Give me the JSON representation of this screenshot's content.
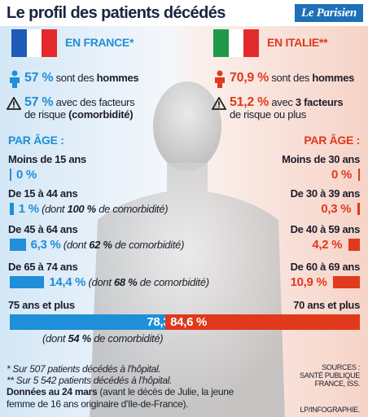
{
  "header": {
    "title": "Le profil des patients décédés",
    "brand": "Le Parisien"
  },
  "countries": [
    {
      "name": "EN FRANCE*",
      "color": "#1e8fd8",
      "men": {
        "share": "57 %",
        "text": "sont des",
        "bold": "hommes"
      },
      "risk": {
        "share": "57 %",
        "lines": [
          [
            {
              "text": "avec des facteurs",
              "bold": false
            }
          ],
          [
            {
              "text": "de risque",
              "bold": false
            },
            {
              "text": "(comorbidité)",
              "bold": true
            }
          ]
        ]
      },
      "age_title": "PAR ÂGE :",
      "ages": [
        {
          "group": "Moins de 15 ans",
          "share": {
            "value": 0,
            "label": "0 %"
          }
        },
        {
          "group": "De 15 à 44 ans",
          "share": {
            "value": 1,
            "label": "1 %"
          },
          "note": {
            "pre": "(dont",
            "share": "100 %",
            "post": "de comorbidité)"
          }
        },
        {
          "group": "De 45 à 64 ans",
          "share": {
            "value": 6.3,
            "label": "6,3 %"
          },
          "note": {
            "pre": "(dont",
            "share": "62 %",
            "post": "de comorbidité)"
          }
        },
        {
          "group": "De 65 à 74 ans",
          "share": {
            "value": 14.4,
            "label": "14,4 %"
          },
          "note": {
            "pre": "(dont",
            "share": "68 %",
            "post": "de comorbidité)"
          }
        },
        {
          "group": "75 ans et plus",
          "share": {
            "value": 78.3,
            "label": "78,3 %"
          },
          "note": {
            "pre": "(dont",
            "share": "54 %",
            "post": "de comorbidité)"
          }
        }
      ]
    },
    {
      "name": "EN ITALIE**",
      "color": "#e0391c",
      "men": {
        "share": "70,9 %",
        "text": "sont des",
        "bold": "hommes"
      },
      "risk": {
        "share": "51,2 %",
        "lines": [
          [
            {
              "text": "avec",
              "bold": false
            },
            {
              "text": "3 facteurs",
              "bold": true
            }
          ],
          [
            {
              "text": "de risque ou plus",
              "bold": false
            }
          ]
        ]
      },
      "age_title": "PAR ÂGE :",
      "ages": [
        {
          "group": "Moins de 30 ans",
          "share": {
            "value": 0,
            "label": "0 %"
          }
        },
        {
          "group": "De 30 à 39 ans",
          "share": {
            "value": 0.3,
            "label": "0,3 %"
          }
        },
        {
          "group": "De 40 à 59 ans",
          "share": {
            "value": 4.2,
            "label": "4,2 %"
          }
        },
        {
          "group": "De 60 à 69 ans",
          "share": {
            "value": 10.9,
            "label": "10,9 %"
          }
        },
        {
          "group": "70 ans et plus",
          "share": {
            "value": 84.6,
            "label": "84,6 %"
          }
        }
      ]
    }
  ],
  "footer": {
    "notes": [
      "* Sur 507 patients décédés à l'hôpital.",
      "** Sur 5 542 patients décédés à l'hôpital."
    ],
    "date_bold": "Données au 24 mars",
    "date_text": "(avant le décès de Julie, la jeune femme de 16 ans originaire d'Ile-de-France).",
    "sources": [
      "SOURCES :",
      "SANTÉ PUBLIQUE",
      "FRANCE, ISS."
    ],
    "credit": "LP/INFOGRAPHIE."
  }
}
